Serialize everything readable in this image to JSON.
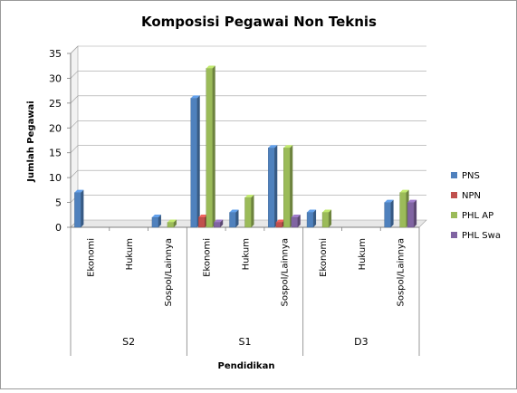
{
  "chart_data": {
    "type": "bar",
    "title": "Komposisi Pegawai Non Teknis",
    "xlabel": "Pendidikan",
    "ylabel": "Jumlah Pegawai",
    "ylim": [
      0,
      35
    ],
    "yticks": [
      "0",
      "5",
      "10",
      "15",
      "20",
      "25",
      "30",
      "35"
    ],
    "grid": true,
    "legend_position": "right",
    "groups": [
      {
        "label": "S2",
        "categories": [
          "Ekonomi",
          "Hukum",
          "Sospol/Lainnya"
        ]
      },
      {
        "label": "S1",
        "categories": [
          "Ekonomi",
          "Hukum",
          "Sospol/Lainnya"
        ]
      },
      {
        "label": "D3",
        "categories": [
          "Ekonomi",
          "Hukum",
          "Sospol/Lainnya"
        ]
      }
    ],
    "series": [
      {
        "name": "PNS",
        "color": "#4F81BD",
        "values": [
          7,
          0,
          2,
          26,
          3,
          16,
          3,
          0,
          5
        ]
      },
      {
        "name": "NPN",
        "color": "#C0504D",
        "values": [
          0,
          0,
          0,
          2,
          0,
          1,
          0,
          0,
          0
        ]
      },
      {
        "name": "PHL AP",
        "color": "#9BBB59",
        "values": [
          0,
          0,
          1,
          32,
          6,
          16,
          3,
          0,
          7
        ]
      },
      {
        "name": "PHL Swa",
        "color": "#8064A2",
        "values": [
          0,
          0,
          0,
          1,
          0,
          2,
          0,
          0,
          5
        ]
      }
    ]
  }
}
